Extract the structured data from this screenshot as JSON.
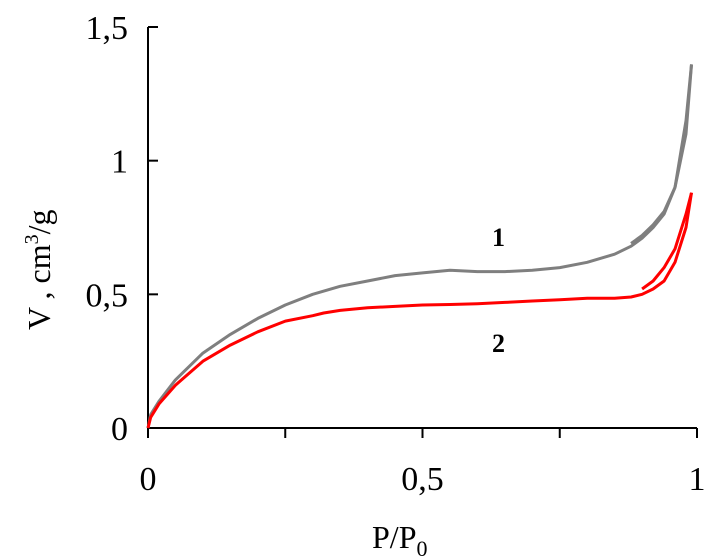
{
  "chart_data": {
    "type": "line",
    "xlabel": "P/P",
    "xlabel_sub": "0",
    "ylabel": "V , cm",
    "ylabel_sup": "3",
    "ylabel_unit": "/g",
    "xlim": [
      0,
      1
    ],
    "ylim": [
      0,
      1.5
    ],
    "x_ticks": [
      0,
      0.5,
      1
    ],
    "x_tick_labels": [
      "0",
      "0,5",
      "1"
    ],
    "x_minor_ticks": [
      0.25,
      0.75
    ],
    "y_ticks": [
      0,
      0.5,
      1,
      1.5
    ],
    "y_tick_labels": [
      "0",
      "0,5",
      "1",
      "1,5"
    ],
    "grid": false,
    "series": [
      {
        "name": "1",
        "color": "#7f7f7f",
        "adsorption": {
          "x": [
            0,
            0.005,
            0.02,
            0.05,
            0.1,
            0.15,
            0.2,
            0.25,
            0.3,
            0.35,
            0.4,
            0.45,
            0.5,
            0.55,
            0.6,
            0.65,
            0.7,
            0.75,
            0.8,
            0.85,
            0.88,
            0.9,
            0.92,
            0.94,
            0.96,
            0.98,
            0.99
          ],
          "y": [
            0,
            0.05,
            0.1,
            0.18,
            0.28,
            0.35,
            0.41,
            0.46,
            0.5,
            0.53,
            0.55,
            0.57,
            0.58,
            0.59,
            0.585,
            0.585,
            0.59,
            0.6,
            0.62,
            0.65,
            0.68,
            0.71,
            0.75,
            0.8,
            0.9,
            1.15,
            1.36
          ]
        },
        "desorption": {
          "x": [
            0.99,
            0.98,
            0.96,
            0.94,
            0.92,
            0.9,
            0.88
          ],
          "y": [
            1.36,
            1.1,
            0.9,
            0.81,
            0.76,
            0.72,
            0.69
          ]
        }
      },
      {
        "name": "2",
        "color": "#ff0000",
        "adsorption": {
          "x": [
            0,
            0.005,
            0.02,
            0.05,
            0.1,
            0.15,
            0.2,
            0.25,
            0.3,
            0.32,
            0.35,
            0.4,
            0.45,
            0.5,
            0.55,
            0.6,
            0.65,
            0.7,
            0.75,
            0.8,
            0.85,
            0.88,
            0.9,
            0.92,
            0.94,
            0.96,
            0.98,
            0.99
          ],
          "y": [
            0,
            0.04,
            0.09,
            0.16,
            0.25,
            0.31,
            0.36,
            0.4,
            0.42,
            0.43,
            0.44,
            0.45,
            0.455,
            0.46,
            0.462,
            0.465,
            0.47,
            0.475,
            0.48,
            0.485,
            0.485,
            0.49,
            0.5,
            0.52,
            0.55,
            0.62,
            0.75,
            0.88
          ]
        },
        "desorption": {
          "x": [
            0.99,
            0.98,
            0.96,
            0.94,
            0.92,
            0.9
          ],
          "y": [
            0.88,
            0.8,
            0.67,
            0.6,
            0.55,
            0.52
          ]
        }
      }
    ]
  }
}
